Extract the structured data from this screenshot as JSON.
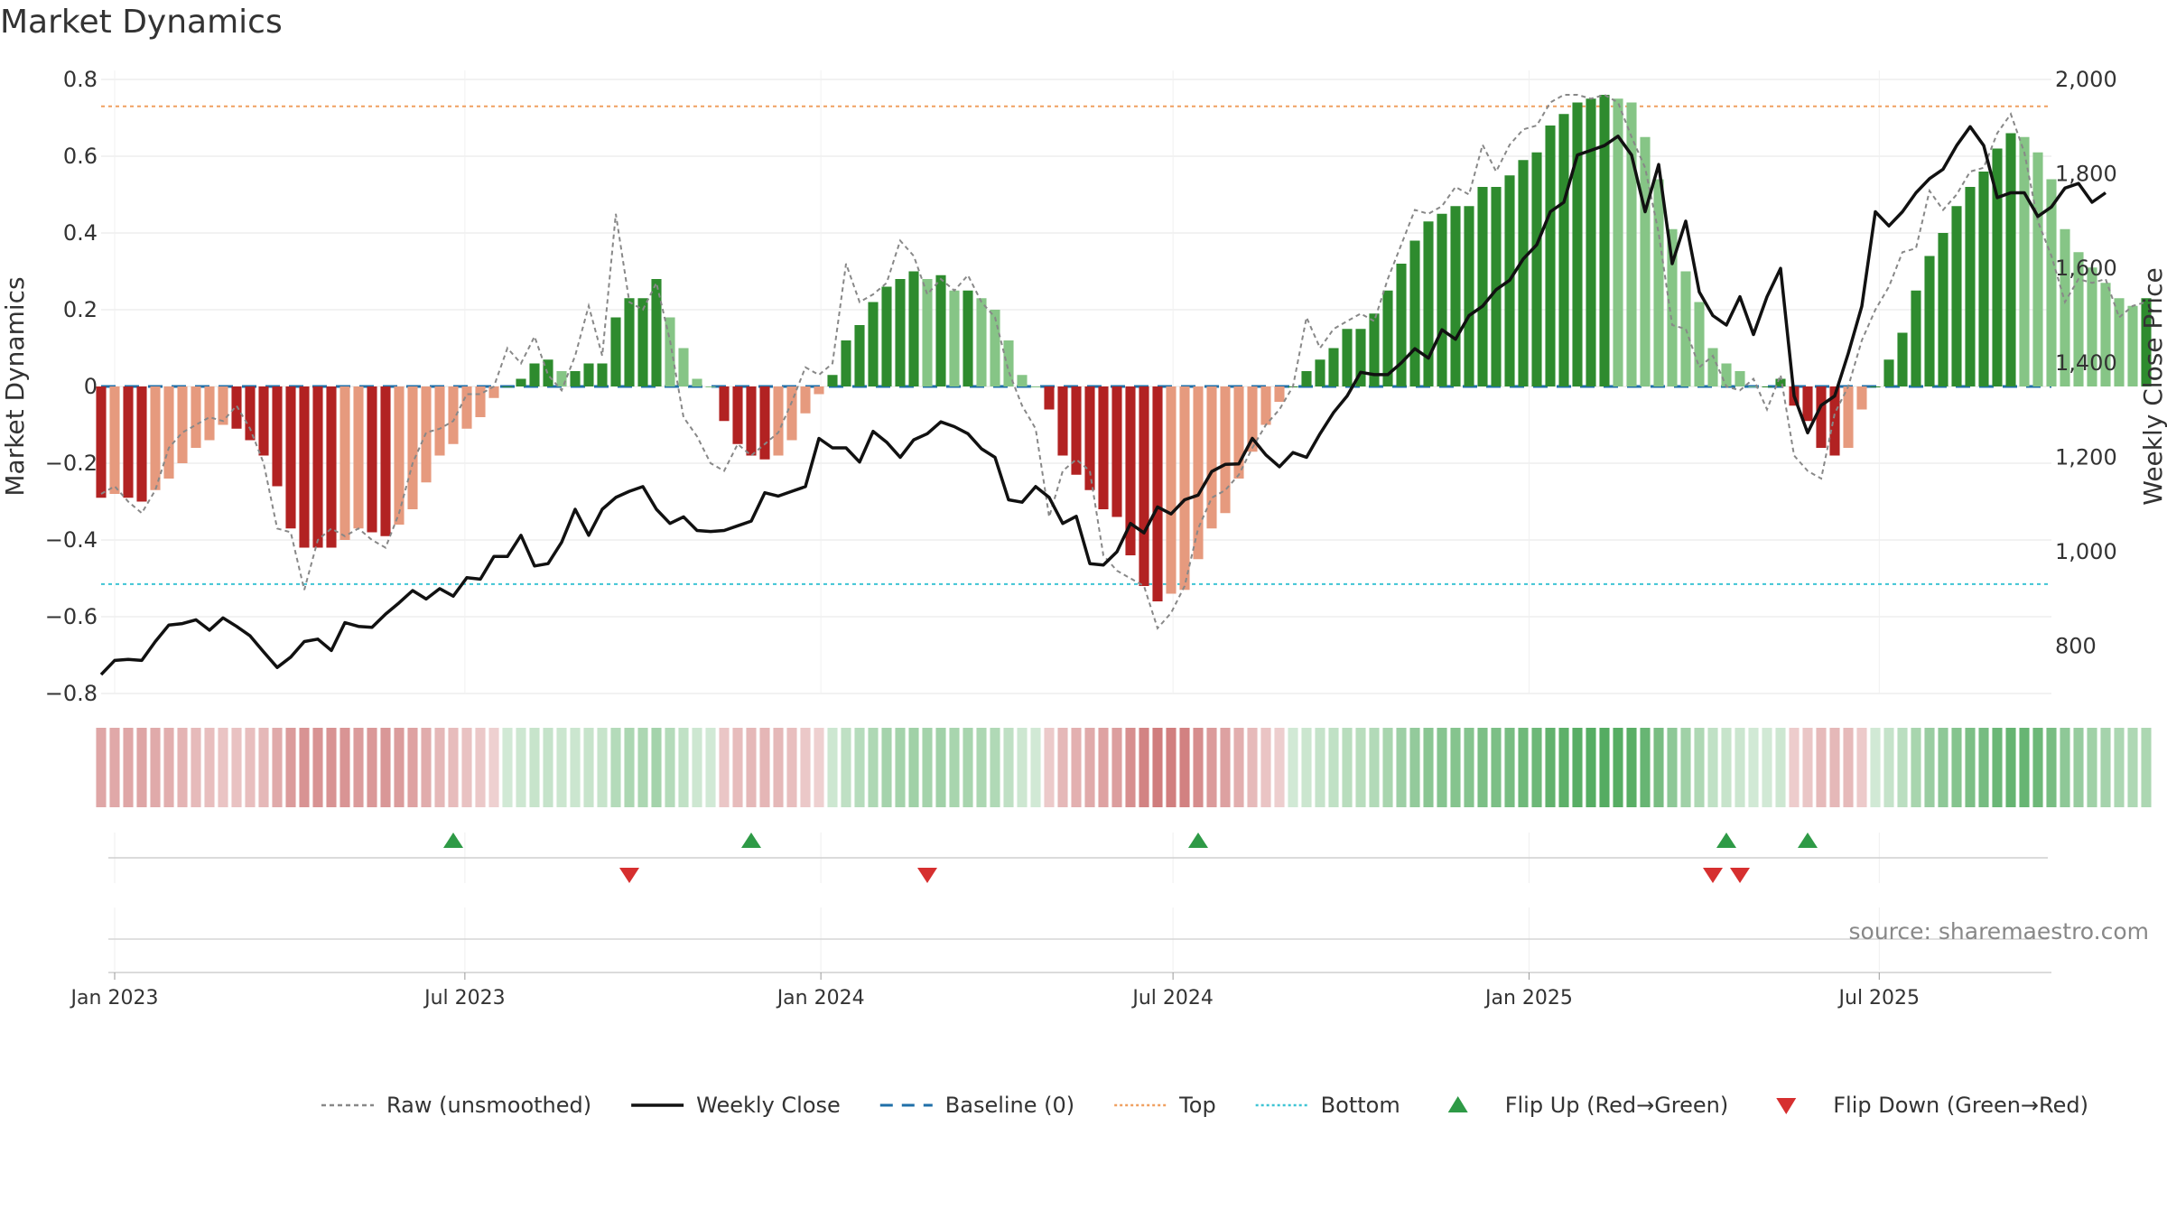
{
  "chart_data": {
    "title": "Market Dynamics",
    "type": "bar",
    "ylabel": "Market Dynamics",
    "y2label": "Weekly Close Price",
    "ylim": [
      -0.8,
      0.8
    ],
    "y2lim": [
      700,
      2000
    ],
    "yticks": [
      "0.8",
      "0.6",
      "0.4",
      "0.2",
      "0",
      "−0.2",
      "−0.4",
      "−0.6",
      "−0.8"
    ],
    "yticks_values": [
      0.8,
      0.6,
      0.4,
      0.2,
      0,
      -0.2,
      -0.4,
      -0.6,
      -0.8
    ],
    "y2ticks": [
      "2,000",
      "1,800",
      "1,600",
      "1,400",
      "1,200",
      "1,000",
      "800"
    ],
    "y2ticks_values": [
      2000,
      1800,
      1600,
      1400,
      1200,
      1000,
      800
    ],
    "xlim": [
      "2022-12-25",
      "2025-09-28"
    ],
    "xticks": [
      {
        "label": "Jan 2023",
        "date": "2023-01-01"
      },
      {
        "label": "Jul 2023",
        "date": "2023-07-01"
      },
      {
        "label": "Jan 2024",
        "date": "2024-01-01"
      },
      {
        "label": "Jul 2024",
        "date": "2024-07-01"
      },
      {
        "label": "Jan 2025",
        "date": "2025-01-01"
      },
      {
        "label": "Jul 2025",
        "date": "2025-07-01"
      }
    ],
    "start_date": "2022-12-25",
    "week_interval_days": 7,
    "top_level": 0.73,
    "bottom_level": -0.515,
    "baseline": 0,
    "smoothed": [
      -0.29,
      -0.28,
      -0.29,
      -0.3,
      -0.27,
      -0.24,
      -0.2,
      -0.16,
      -0.14,
      -0.1,
      -0.11,
      -0.14,
      -0.18,
      -0.26,
      -0.37,
      -0.42,
      -0.42,
      -0.42,
      -0.4,
      -0.37,
      -0.38,
      -0.39,
      -0.36,
      -0.32,
      -0.25,
      -0.18,
      -0.15,
      -0.11,
      -0.08,
      -0.03,
      0.0,
      0.02,
      0.06,
      0.07,
      0.04,
      0.04,
      0.06,
      0.06,
      0.18,
      0.23,
      0.23,
      0.28,
      0.18,
      0.1,
      0.02,
      0.0,
      -0.09,
      -0.15,
      -0.18,
      -0.19,
      -0.18,
      -0.14,
      -0.07,
      -0.02,
      0.03,
      0.12,
      0.16,
      0.22,
      0.26,
      0.28,
      0.3,
      0.28,
      0.29,
      0.25,
      0.25,
      0.23,
      0.2,
      0.12,
      0.03,
      0.0,
      -0.06,
      -0.18,
      -0.23,
      -0.27,
      -0.32,
      -0.34,
      -0.44,
      -0.52,
      -0.56,
      -0.54,
      -0.53,
      -0.45,
      -0.37,
      -0.33,
      -0.24,
      -0.17,
      -0.1,
      -0.04,
      0.0,
      0.04,
      0.07,
      0.1,
      0.15,
      0.15,
      0.19,
      0.25,
      0.32,
      0.38,
      0.43,
      0.45,
      0.47,
      0.47,
      0.52,
      0.52,
      0.55,
      0.59,
      0.61,
      0.68,
      0.71,
      0.74,
      0.75,
      0.76,
      0.75,
      0.74,
      0.65,
      0.54,
      0.41,
      0.3,
      0.22,
      0.1,
      0.06,
      0.04,
      0.0,
      0.0,
      0.02,
      -0.05,
      -0.09,
      -0.16,
      -0.18,
      -0.16,
      -0.06,
      0.0,
      0.07,
      0.14,
      0.25,
      0.34,
      0.4,
      0.47,
      0.52,
      0.56,
      0.62,
      0.66,
      0.65,
      0.61,
      0.54,
      0.41,
      0.35,
      0.31,
      0.27,
      0.23,
      0.21,
      0.23
    ],
    "raw_unsmoothed": [
      -0.28,
      -0.26,
      -0.3,
      -0.33,
      -0.27,
      -0.16,
      -0.12,
      -0.1,
      -0.08,
      -0.09,
      -0.05,
      -0.11,
      -0.2,
      -0.37,
      -0.38,
      -0.53,
      -0.4,
      -0.37,
      -0.39,
      -0.37,
      -0.4,
      -0.42,
      -0.33,
      -0.2,
      -0.12,
      -0.11,
      -0.09,
      -0.02,
      -0.02,
      0.0,
      0.1,
      0.06,
      0.13,
      0.03,
      -0.01,
      0.08,
      0.21,
      0.08,
      0.45,
      0.22,
      0.2,
      0.27,
      0.12,
      -0.08,
      -0.13,
      -0.2,
      -0.22,
      -0.15,
      -0.18,
      -0.15,
      -0.12,
      -0.04,
      0.05,
      0.03,
      0.06,
      0.32,
      0.22,
      0.24,
      0.27,
      0.38,
      0.34,
      0.24,
      0.28,
      0.25,
      0.29,
      0.22,
      0.18,
      0.04,
      -0.05,
      -0.11,
      -0.34,
      -0.22,
      -0.19,
      -0.22,
      -0.44,
      -0.48,
      -0.5,
      -0.52,
      -0.63,
      -0.59,
      -0.52,
      -0.37,
      -0.29,
      -0.27,
      -0.23,
      -0.16,
      -0.1,
      -0.06,
      0.0,
      0.18,
      0.1,
      0.15,
      0.17,
      0.19,
      0.17,
      0.28,
      0.37,
      0.46,
      0.45,
      0.47,
      0.52,
      0.5,
      0.63,
      0.56,
      0.63,
      0.67,
      0.68,
      0.74,
      0.76,
      0.76,
      0.75,
      0.76,
      0.74,
      0.65,
      0.57,
      0.4,
      0.16,
      0.15,
      0.05,
      0.08,
      0.0,
      -0.01,
      0.02,
      -0.06,
      0.03,
      -0.18,
      -0.22,
      -0.24,
      -0.07,
      0.0,
      0.12,
      0.2,
      0.26,
      0.35,
      0.36,
      0.51,
      0.46,
      0.5,
      0.56,
      0.57,
      0.66,
      0.71,
      0.61,
      0.43,
      0.34,
      0.22,
      0.28,
      0.27,
      0.28,
      0.18,
      0.21,
      0.22
    ],
    "weekly_close": [
      740,
      770,
      772,
      770,
      810,
      845,
      848,
      856,
      834,
      860,
      842,
      822,
      788,
      755,
      777,
      810,
      815,
      791,
      850,
      842,
      840,
      868,
      892,
      918,
      900,
      922,
      906,
      945,
      942,
      990,
      990,
      1035,
      970,
      975,
      1020,
      1090,
      1035,
      1090,
      1115,
      1128,
      1138,
      1090,
      1060,
      1074,
      1045,
      1043,
      1045,
      1055,
      1065,
      1125,
      1118,
      1128,
      1138,
      1240,
      1220,
      1220,
      1190,
      1255,
      1232,
      1200,
      1237,
      1250,
      1275,
      1265,
      1250,
      1218,
      1200,
      1110,
      1105,
      1138,
      1115,
      1060,
      1075,
      975,
      972,
      1000,
      1060,
      1040,
      1095,
      1080,
      1110,
      1120,
      1170,
      1185,
      1186,
      1240,
      1205,
      1180,
      1210,
      1200,
      1250,
      1295,
      1330,
      1380,
      1375,
      1375,
      1400,
      1430,
      1410,
      1470,
      1450,
      1500,
      1520,
      1555,
      1575,
      1620,
      1650,
      1720,
      1740,
      1840,
      1850,
      1860,
      1880,
      1840,
      1720,
      1820,
      1610,
      1700,
      1550,
      1500,
      1480,
      1540,
      1460,
      1540,
      1600,
      1330,
      1252,
      1310,
      1330,
      1420,
      1520,
      1720,
      1690,
      1720,
      1760,
      1790,
      1810,
      1860,
      1900,
      1860,
      1750,
      1760,
      1760,
      1710,
      1730,
      1770,
      1780,
      1740,
      1760
    ],
    "flip_up_dates": [
      "2023-06-25",
      "2023-11-26",
      "2024-07-14",
      "2025-04-13",
      "2025-05-25"
    ],
    "flip_down_dates": [
      "2023-09-24",
      "2024-02-25",
      "2025-04-06",
      "2025-04-20"
    ],
    "colors": {
      "strong_green": "#2e8b2e",
      "light_green": "#86c586",
      "strong_red": "#b22222",
      "light_red": "#e69a7e",
      "raw_line": "#888888",
      "close_line": "#111111",
      "baseline": "#1f6fa8",
      "top": "#f0a060",
      "bottom": "#3ec4d4",
      "flip_up": "#2e9a46",
      "flip_down": "#d62f2f"
    },
    "legend_placement": "bottom-center",
    "legend": [
      {
        "label": "Raw (unsmoothed)",
        "kind": "dashed-line",
        "color": "#888888"
      },
      {
        "label": "Weekly Close",
        "kind": "solid-line",
        "color": "#111111"
      },
      {
        "label": "Baseline (0)",
        "kind": "dashed-line-wide",
        "color": "#1f6fa8"
      },
      {
        "label": "Top",
        "kind": "dotted-line",
        "color": "#f0a060"
      },
      {
        "label": "Bottom",
        "kind": "dotted-line",
        "color": "#3ec4d4"
      },
      {
        "label": "Flip Up (Red→Green)",
        "kind": "triangle-up",
        "color": "#2e9a46"
      },
      {
        "label": "Flip Down (Green→Red)",
        "kind": "triangle-down",
        "color": "#d62f2f"
      }
    ]
  },
  "source": "source: sharemaestro.com"
}
